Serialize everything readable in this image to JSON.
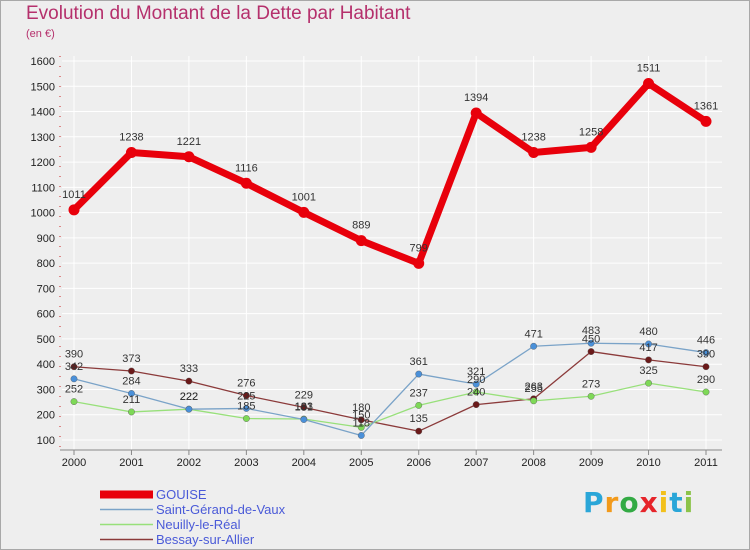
{
  "title": "Evolution du Montant de la Dette par Habitant",
  "unit": "(en €)",
  "logo": {
    "text": "Proxiti",
    "letter_colors": [
      "#2aa6d8",
      "#f29a1b",
      "#33aa44",
      "#e6242a",
      "#f2c01b",
      "#2aa6d8",
      "#8bc34a"
    ]
  },
  "chart_data": {
    "type": "line",
    "x": [
      "2000",
      "2001",
      "2002",
      "2003",
      "2004",
      "2005",
      "2006",
      "2007",
      "2008",
      "2009",
      "2010",
      "2011"
    ],
    "ylim": [
      100,
      1600
    ],
    "yticks": [
      "100",
      "200",
      "300",
      "400",
      "500",
      "600",
      "700",
      "800",
      "900",
      "1000",
      "1100",
      "1200",
      "1300",
      "1400",
      "1500",
      "1600"
    ],
    "grid": true,
    "legend_position": "bottom-left",
    "series": [
      {
        "name": "GOUISE",
        "values": [
          1011,
          1238,
          1221,
          1116,
          1001,
          889,
          799,
          1394,
          1238,
          1258,
          1511,
          1361
        ],
        "labels": [
          "1011",
          "1238",
          "1221",
          "1116",
          "1001",
          "889",
          "799",
          "1394",
          "1238",
          "1258",
          "1511",
          "1361"
        ],
        "color": "#e8000b",
        "marker_color": "#e8000b",
        "emphasis": true
      },
      {
        "name": "Saint-Gérand-de-Vaux",
        "values": [
          342,
          284,
          222,
          225,
          181,
          118,
          361,
          321,
          471,
          483,
          480,
          446
        ],
        "labels": [
          "342",
          "284",
          "222",
          "225",
          "181",
          "118",
          "361",
          "321",
          "471",
          "483",
          "480",
          "446"
        ],
        "color": "#7aa3c8",
        "marker_color": "#4a90d9",
        "emphasis": false
      },
      {
        "name": "Neuilly-le-Réal",
        "values": [
          252,
          211,
          222,
          185,
          183,
          150,
          237,
          290,
          255,
          273,
          325,
          290
        ],
        "labels": [
          "252",
          "211",
          "222",
          "185",
          "183",
          "150",
          "237",
          "290",
          "255",
          "273",
          "325",
          "290"
        ],
        "color": "#98e07a",
        "marker_color": "#7ed957",
        "emphasis": false
      },
      {
        "name": "Bessay-sur-Allier",
        "values": [
          390,
          373,
          333,
          276,
          229,
          180,
          135,
          240,
          263,
          450,
          417,
          390
        ],
        "labels": [
          "390",
          "373",
          "333",
          "276",
          "229",
          "180",
          "135",
          "240",
          "263",
          "450",
          "417",
          "390"
        ],
        "color": "#8b3a3a",
        "marker_color": "#6b1a1a",
        "emphasis": false
      }
    ]
  }
}
